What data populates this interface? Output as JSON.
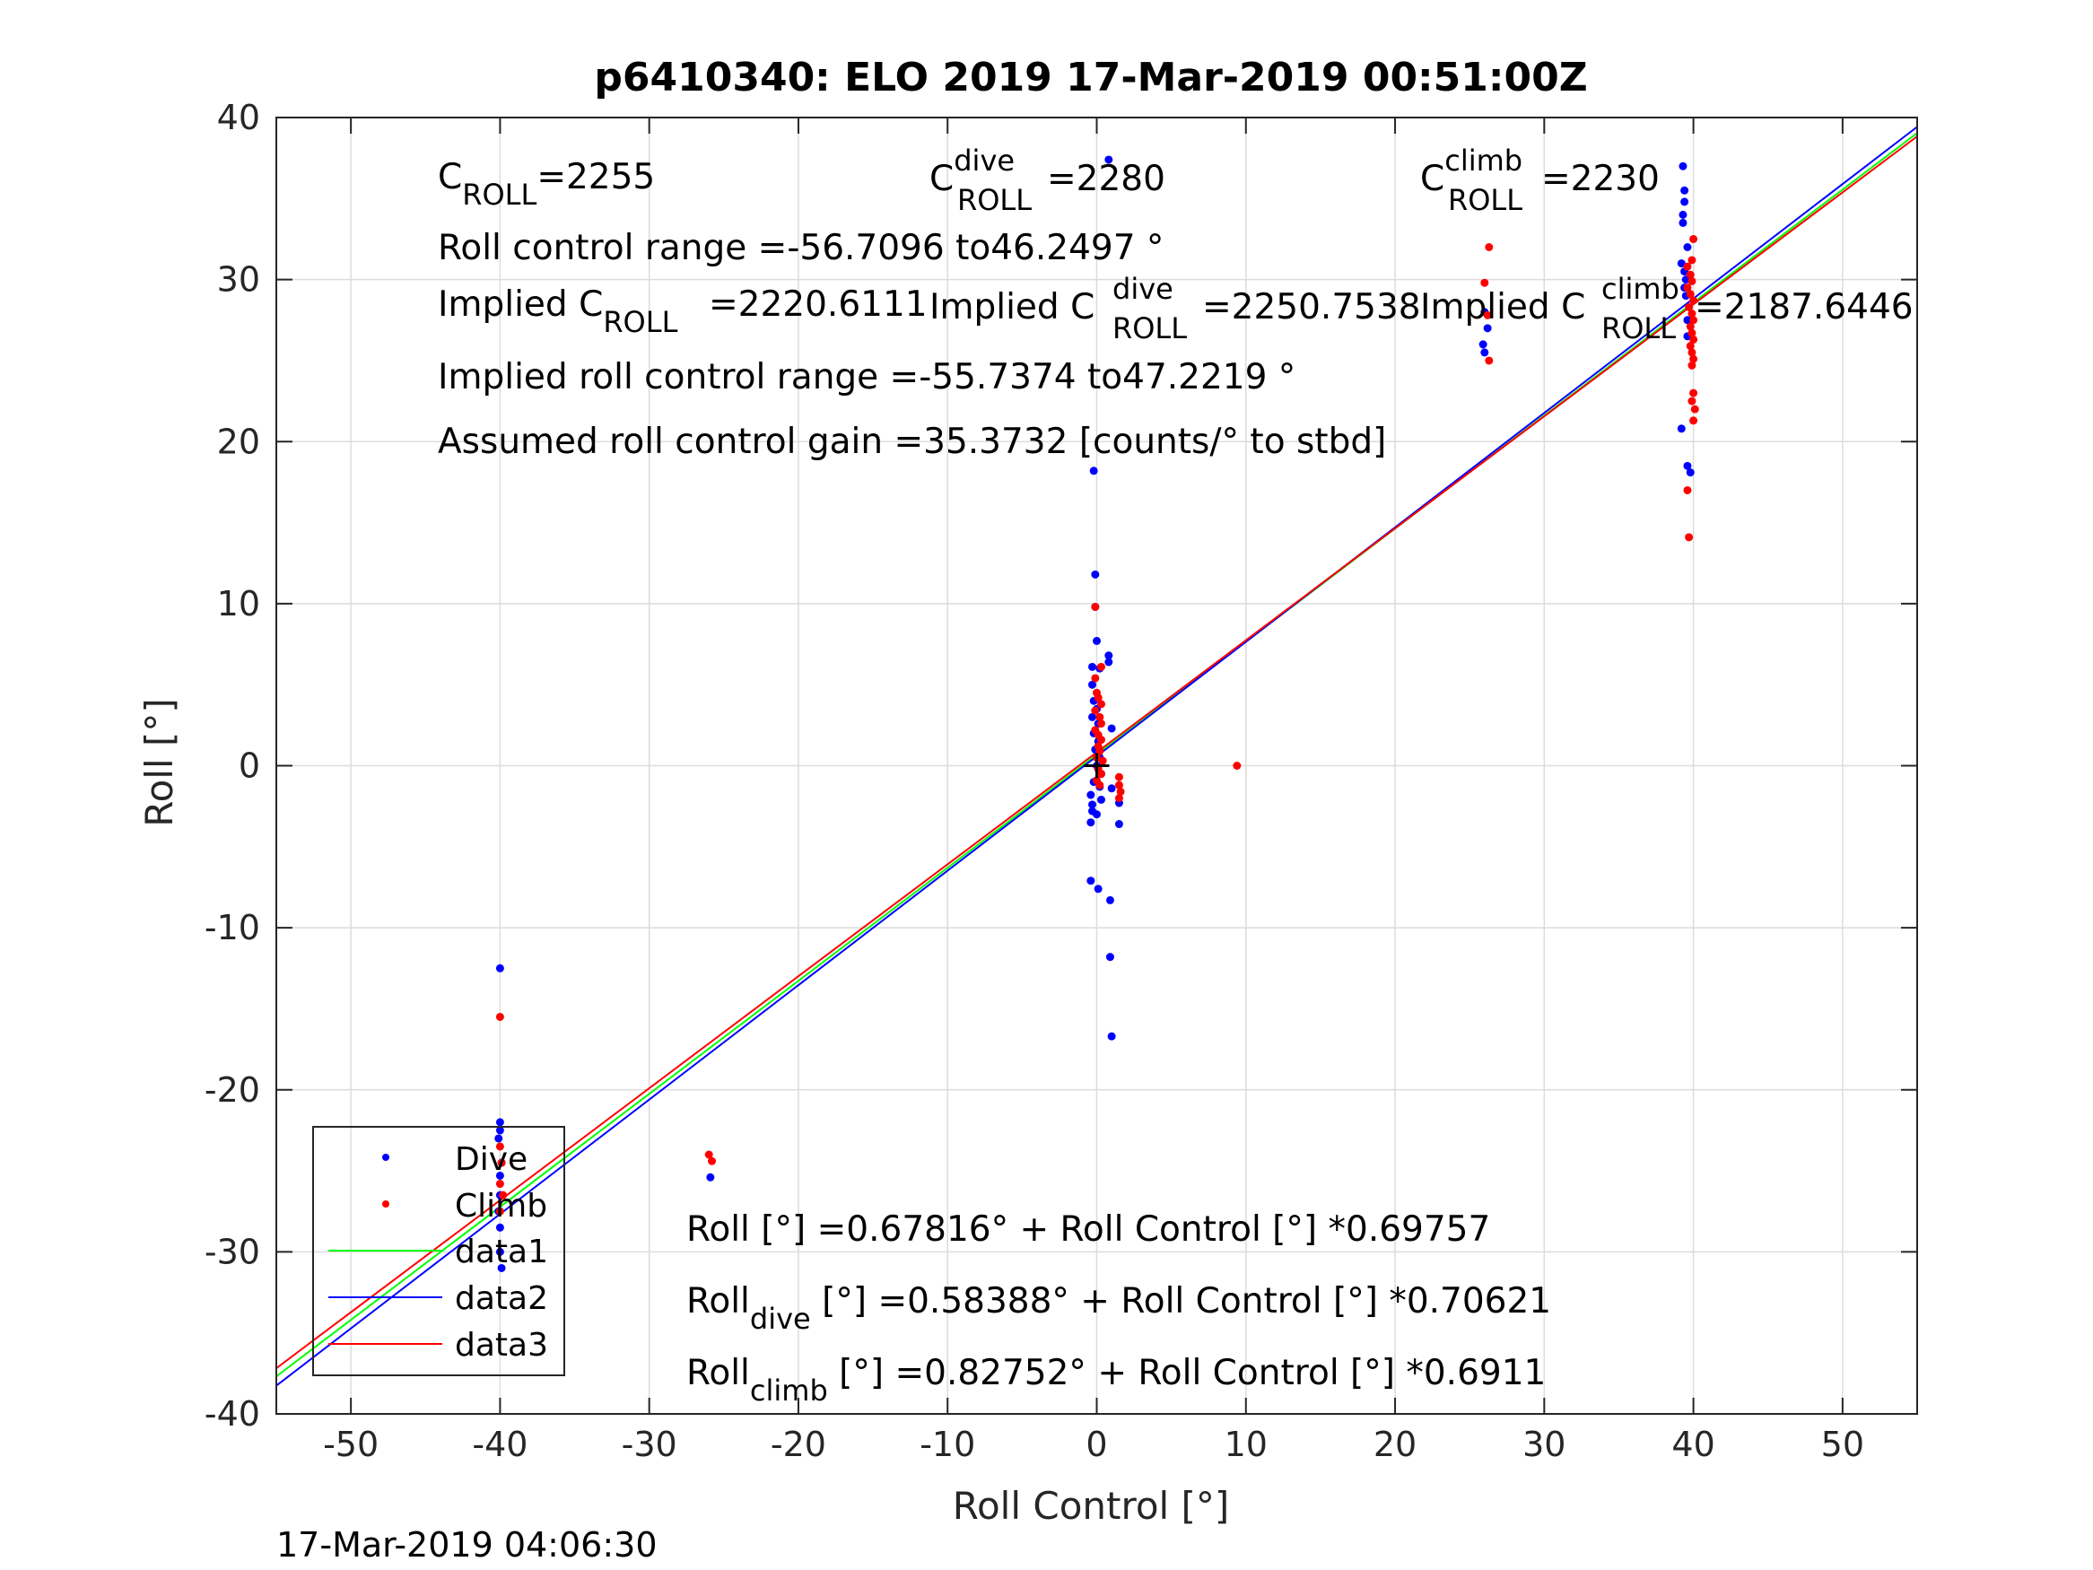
{
  "chart_data": {
    "type": "scatter",
    "title": "p6410340: ELO 2019 17-Mar-2019 00:51:00Z",
    "xlabel": "Roll Control [°]",
    "ylabel": "Roll [°]",
    "xlim": [
      -55,
      55
    ],
    "ylim": [
      -40,
      40
    ],
    "xticks": [
      -50,
      -40,
      -30,
      -20,
      -10,
      0,
      10,
      20,
      30,
      40,
      50
    ],
    "yticks": [
      -40,
      -30,
      -20,
      -10,
      0,
      10,
      20,
      30,
      40
    ],
    "grid": true,
    "legend_placement": "bottom-left",
    "colors": {
      "dive": "#0000ff",
      "climb": "#ff0000",
      "data1": "#00ff00",
      "data2": "#0000ff",
      "data3": "#ff0000"
    },
    "series": [
      {
        "name": "Dive",
        "marker": "dot",
        "color": "#0000ff",
        "points": [
          [
            0.8,
            37.4
          ],
          [
            -0.2,
            18.2
          ],
          [
            -0.1,
            11.8
          ],
          [
            -0.1,
            9.8
          ],
          [
            0.0,
            7.7
          ],
          [
            0.8,
            6.8
          ],
          [
            0.8,
            6.4
          ],
          [
            -0.3,
            6.1
          ],
          [
            0.2,
            6.0
          ],
          [
            -0.3,
            5.0
          ],
          [
            -0.2,
            4.0
          ],
          [
            0.0,
            3.5
          ],
          [
            -0.3,
            3.0
          ],
          [
            0.1,
            2.6
          ],
          [
            1.0,
            2.3
          ],
          [
            -0.2,
            2.0
          ],
          [
            0.1,
            1.5
          ],
          [
            -0.1,
            1.0
          ],
          [
            0.2,
            0.5
          ],
          [
            0.0,
            0.0
          ],
          [
            0.3,
            -0.5
          ],
          [
            -0.2,
            -1.0
          ],
          [
            0.2,
            -1.3
          ],
          [
            1.0,
            -1.4
          ],
          [
            -0.4,
            -1.8
          ],
          [
            0.3,
            -2.1
          ],
          [
            -0.3,
            -2.4
          ],
          [
            1.5,
            -2.3
          ],
          [
            -0.3,
            -2.8
          ],
          [
            0.0,
            -3.0
          ],
          [
            -0.4,
            -3.5
          ],
          [
            1.5,
            -3.6
          ],
          [
            -0.4,
            -7.1
          ],
          [
            0.1,
            -7.6
          ],
          [
            0.9,
            -8.3
          ],
          [
            0.9,
            -11.8
          ],
          [
            1.0,
            -16.7
          ],
          [
            -40.0,
            -12.5
          ],
          [
            -40.0,
            -22.0
          ],
          [
            -40.0,
            -22.5
          ],
          [
            -40.1,
            -23.0
          ],
          [
            -39.9,
            -24.5
          ],
          [
            -40.0,
            -25.3
          ],
          [
            -40.0,
            -26.5
          ],
          [
            -40.1,
            -27.5
          ],
          [
            -40.0,
            -28.5
          ],
          [
            -40.0,
            -30.0
          ],
          [
            -39.9,
            -31.0
          ],
          [
            -25.9,
            -25.4
          ],
          [
            25.9,
            26.0
          ],
          [
            26.0,
            25.5
          ],
          [
            26.2,
            27.0
          ],
          [
            26.0,
            28.0
          ],
          [
            39.3,
            37.0
          ],
          [
            39.4,
            35.5
          ],
          [
            39.4,
            34.8
          ],
          [
            39.3,
            34.0
          ],
          [
            39.3,
            33.5
          ],
          [
            39.6,
            32.0
          ],
          [
            39.2,
            31.0
          ],
          [
            39.4,
            30.5
          ],
          [
            39.5,
            30.0
          ],
          [
            39.4,
            29.5
          ],
          [
            39.5,
            29.0
          ],
          [
            39.6,
            27.5
          ],
          [
            39.6,
            26.5
          ],
          [
            39.2,
            20.8
          ],
          [
            39.6,
            18.5
          ],
          [
            39.8,
            18.1
          ]
        ]
      },
      {
        "name": "Climb",
        "marker": "dot",
        "color": "#ff0000",
        "points": [
          [
            -0.1,
            9.8
          ],
          [
            0.3,
            6.1
          ],
          [
            -0.1,
            5.4
          ],
          [
            0.0,
            4.5
          ],
          [
            0.1,
            4.2
          ],
          [
            0.3,
            3.8
          ],
          [
            -0.1,
            3.4
          ],
          [
            0.2,
            3.0
          ],
          [
            0.3,
            2.6
          ],
          [
            -0.1,
            2.2
          ],
          [
            0.1,
            1.9
          ],
          [
            0.3,
            1.6
          ],
          [
            0.1,
            1.2
          ],
          [
            0.2,
            0.9
          ],
          [
            0.0,
            0.5
          ],
          [
            0.4,
            0.3
          ],
          [
            0.1,
            -0.2
          ],
          [
            0.3,
            -0.5
          ],
          [
            0.0,
            -0.9
          ],
          [
            0.2,
            -1.2
          ],
          [
            1.5,
            -0.7
          ],
          [
            1.5,
            -1.2
          ],
          [
            1.6,
            -1.6
          ],
          [
            1.5,
            -2.0
          ],
          [
            9.4,
            0.0
          ],
          [
            -40.0,
            -15.5
          ],
          [
            -40.0,
            -23.5
          ],
          [
            -39.9,
            -24.5
          ],
          [
            -40.0,
            -25.8
          ],
          [
            -39.8,
            -26.5
          ],
          [
            -40.0,
            -27.5
          ],
          [
            -26.0,
            -24.0
          ],
          [
            -25.8,
            -24.4
          ],
          [
            26.3,
            32.0
          ],
          [
            26.0,
            29.8
          ],
          [
            26.2,
            27.8
          ],
          [
            26.3,
            25.0
          ],
          [
            40.0,
            32.5
          ],
          [
            39.9,
            31.2
          ],
          [
            39.6,
            30.8
          ],
          [
            39.8,
            30.3
          ],
          [
            39.9,
            29.9
          ],
          [
            39.6,
            29.5
          ],
          [
            39.8,
            29.1
          ],
          [
            40.0,
            28.7
          ],
          [
            39.7,
            28.3
          ],
          [
            39.9,
            27.9
          ],
          [
            40.0,
            27.5
          ],
          [
            39.8,
            27.1
          ],
          [
            39.9,
            26.7
          ],
          [
            40.0,
            26.3
          ],
          [
            39.8,
            25.9
          ],
          [
            39.9,
            25.5
          ],
          [
            40.0,
            25.1
          ],
          [
            39.9,
            24.7
          ],
          [
            40.0,
            23.0
          ],
          [
            39.9,
            22.5
          ],
          [
            40.1,
            22.0
          ],
          [
            40.0,
            21.3
          ],
          [
            39.6,
            17.0
          ],
          [
            39.7,
            14.1
          ]
        ]
      }
    ],
    "fit_lines": [
      {
        "name": "data1",
        "color": "#00ff00",
        "intercept": 0.67816,
        "slope": 0.69757
      },
      {
        "name": "data2",
        "color": "#0000ff",
        "intercept": 0.58388,
        "slope": 0.70621
      },
      {
        "name": "data3",
        "color": "#ff0000",
        "intercept": 0.82752,
        "slope": 0.6911
      }
    ],
    "legend": [
      "Dive",
      "Climb",
      "data1",
      "data2",
      "data3"
    ],
    "annotations": {
      "croll": {
        "base": "C",
        "sub": "ROLL",
        "value": "=2255"
      },
      "croll_dive": {
        "base": "C",
        "sup": "dive",
        "sub": "ROLL",
        "value": "=2280"
      },
      "croll_climb": {
        "base": "C",
        "sup": "climb",
        "sub": "ROLL",
        "value": "=2230"
      },
      "roll_range": "Roll control range =-56.7096 to46.2497 °",
      "implied_croll": {
        "prefix": "Implied C",
        "sub": "ROLL",
        "value": "=2220.6111"
      },
      "implied_croll_dive": {
        "prefix": "Implied C",
        "sup": "dive",
        "sub": "ROLL",
        "value": "=2250.7538"
      },
      "implied_croll_climb": {
        "prefix": "Implied C",
        "sup": "climb",
        "sub": "ROLL",
        "value": "=2187.6446"
      },
      "implied_range": "Implied roll control range =-55.7374 to47.2219 °",
      "gain": "Assumed roll control gain =35.3732 [counts/° to stbd]",
      "fit_all": {
        "prefix": "Roll",
        "text": " [°] =0.67816° + Roll Control [°] *0.69757"
      },
      "fit_dive": {
        "prefix": "Roll",
        "sub": "dive",
        "text": " [°] =0.58388° + Roll Control [°] *0.70621"
      },
      "fit_climb": {
        "prefix": "Roll",
        "sub": "climb",
        "text": " [°] =0.82752° + Roll Control [°] *0.6911"
      }
    },
    "timestamp": "17-Mar-2019 04:06:30"
  }
}
